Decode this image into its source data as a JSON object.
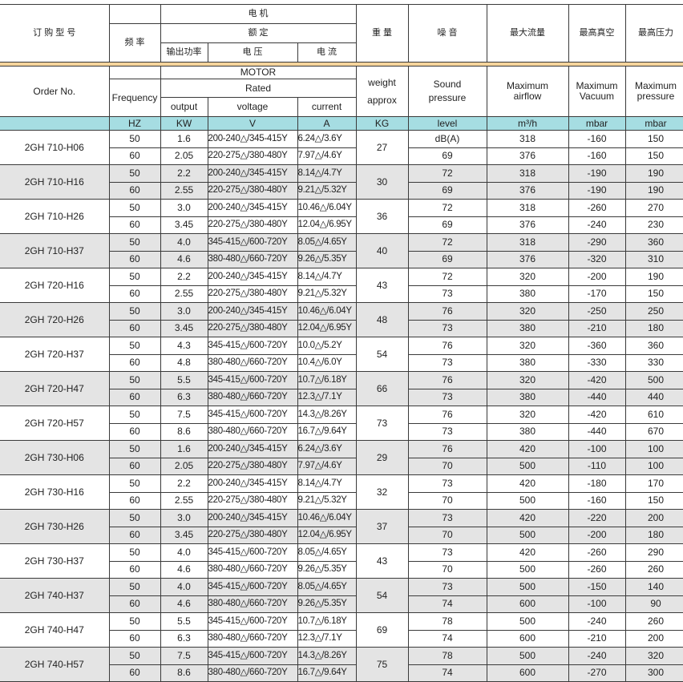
{
  "header": {
    "cn": {
      "order": "订 购 型 号",
      "freq": "频 率",
      "motor": "电 机",
      "rated": "额 定",
      "output": "输出功率",
      "voltage": "电 压",
      "current": "电 流",
      "weight": "重 量",
      "noise": "噪 音",
      "airflow": "最大流量",
      "vacuum": "最高真空",
      "pressure": "最高压力"
    },
    "en": {
      "order": "Order No.",
      "freq": "Frequency",
      "motor": "MOTOR",
      "rated": "Rated",
      "output": "output",
      "voltage": "voltage",
      "current": "current",
      "weight": "weight approx",
      "noise": "Sound pressure",
      "airflow": "Maximum airflow",
      "vacuum": "Maximum Vacuum",
      "pressure": "Maximum pressure"
    },
    "units": [
      "",
      "HZ",
      "KW",
      "V",
      "A",
      "KG",
      "level",
      "m³/h",
      "mbar",
      "mbar"
    ]
  },
  "colors": {
    "header_band": "#f6d49b",
    "units_row": "#a6dde2",
    "alt_row": "#e4e4e4"
  },
  "models": [
    {
      "name": "2GH 710-H06",
      "weight": "27",
      "rows": [
        [
          "50",
          "1.6",
          "200-240△/345-415Y",
          "6.24△/3.6Y",
          "dB(A)",
          "318",
          "-160",
          "150"
        ],
        [
          "60",
          "2.05",
          "220-275△/380-480Y",
          "7.97△/4.6Y",
          "69",
          "376",
          "-160",
          "150"
        ]
      ]
    },
    {
      "name": "2GH 710-H16",
      "weight": "30",
      "rows": [
        [
          "50",
          "2.2",
          "200-240△/345-415Y",
          "8.14△/4.7Y",
          "72",
          "318",
          "-190",
          "190"
        ],
        [
          "60",
          "2.55",
          "220-275△/380-480Y",
          "9.21△/5.32Y",
          "69",
          "376",
          "-190",
          "190"
        ]
      ]
    },
    {
      "name": "2GH 710-H26",
      "weight": "36",
      "rows": [
        [
          "50",
          "3.0",
          "200-240△/345-415Y",
          "10.46△/6.04Y",
          "72",
          "318",
          "-260",
          "270"
        ],
        [
          "60",
          "3.45",
          "220-275△/380-480Y",
          "12.04△/6.95Y",
          "69",
          "376",
          "-240",
          "230"
        ]
      ]
    },
    {
      "name": "2GH 710-H37",
      "weight": "40",
      "rows": [
        [
          "50",
          "4.0",
          "345-415△/600-720Y",
          "8.05△/4.65Y",
          "72",
          "318",
          "-290",
          "360"
        ],
        [
          "60",
          "4.6",
          "380-480△/660-720Y",
          "9.26△/5.35Y",
          "69",
          "376",
          "-320",
          "310"
        ]
      ]
    },
    {
      "name": "2GH 720-H16",
      "weight": "43",
      "rows": [
        [
          "50",
          "2.2",
          "200-240△/345-415Y",
          "8.14△/4.7Y",
          "72",
          "320",
          "-200",
          "190"
        ],
        [
          "60",
          "2.55",
          "220-275△/380-480Y",
          "9.21△/5.32Y",
          "73",
          "380",
          "-170",
          "150"
        ]
      ]
    },
    {
      "name": "2GH 720-H26",
      "weight": "48",
      "rows": [
        [
          "50",
          "3.0",
          "200-240△/345-415Y",
          "10.46△/6.04Y",
          "76",
          "320",
          "-250",
          "250"
        ],
        [
          "60",
          "3.45",
          "220-275△/380-480Y",
          "12.04△/6.95Y",
          "73",
          "380",
          "-210",
          "180"
        ]
      ]
    },
    {
      "name": "2GH 720-H37",
      "weight": "54",
      "rows": [
        [
          "50",
          "4.3",
          "345-415△/600-720Y",
          "10.0△/5.2Y",
          "76",
          "320",
          "-360",
          "360"
        ],
        [
          "60",
          "4.8",
          "380-480△/660-720Y",
          "10.4△/6.0Y",
          "73",
          "380",
          "-330",
          "330"
        ]
      ]
    },
    {
      "name": "2GH 720-H47",
      "weight": "66",
      "rows": [
        [
          "50",
          "5.5",
          "345-415△/600-720Y",
          "10.7△/6.18Y",
          "76",
          "320",
          "-420",
          "500"
        ],
        [
          "60",
          "6.3",
          "380-480△/660-720Y",
          "12.3△/7.1Y",
          "73",
          "380",
          "-440",
          "440"
        ]
      ]
    },
    {
      "name": "2GH 720-H57",
      "weight": "73",
      "rows": [
        [
          "50",
          "7.5",
          "345-415△/600-720Y",
          "14.3△/8.26Y",
          "76",
          "320",
          "-420",
          "610"
        ],
        [
          "60",
          "8.6",
          "380-480△/660-720Y",
          "16.7△/9.64Y",
          "73",
          "380",
          "-440",
          "670"
        ]
      ]
    },
    {
      "name": "2GH 730-H06",
      "weight": "29",
      "rows": [
        [
          "50",
          "1.6",
          "200-240△/345-415Y",
          "6.24△/3.6Y",
          "76",
          "420",
          "-100",
          "100"
        ],
        [
          "60",
          "2.05",
          "220-275△/380-480Y",
          "7.97△/4.6Y",
          "70",
          "500",
          "-110",
          "100"
        ]
      ]
    },
    {
      "name": "2GH 730-H16",
      "weight": "32",
      "rows": [
        [
          "50",
          "2.2",
          "200-240△/345-415Y",
          "8.14△/4.7Y",
          "73",
          "420",
          "-180",
          "170"
        ],
        [
          "60",
          "2.55",
          "220-275△/380-480Y",
          "9.21△/5.32Y",
          "70",
          "500",
          "-160",
          "150"
        ]
      ]
    },
    {
      "name": "2GH 730-H26",
      "weight": "37",
      "rows": [
        [
          "50",
          "3.0",
          "200-240△/345-415Y",
          "10.46△/6.04Y",
          "73",
          "420",
          "-220",
          "200"
        ],
        [
          "60",
          "3.45",
          "220-275△/380-480Y",
          "12.04△/6.95Y",
          "70",
          "500",
          "-200",
          "180"
        ]
      ]
    },
    {
      "name": "2GH 730-H37",
      "weight": "43",
      "rows": [
        [
          "50",
          "4.0",
          "345-415△/600-720Y",
          "8.05△/4.65Y",
          "73",
          "420",
          "-260",
          "290"
        ],
        [
          "60",
          "4.6",
          "380-480△/660-720Y",
          "9.26△/5.35Y",
          "70",
          "500",
          "-260",
          "260"
        ]
      ]
    },
    {
      "name": "2GH 740-H37",
      "weight": "54",
      "rows": [
        [
          "50",
          "4.0",
          "345-415△/600-720Y",
          "8.05△/4.65Y",
          "73",
          "500",
          "-150",
          "140"
        ],
        [
          "60",
          "4.6",
          "380-480△/660-720Y",
          "9.26△/5.35Y",
          "74",
          "600",
          "-100",
          "90"
        ]
      ]
    },
    {
      "name": "2GH 740-H47",
      "weight": "69",
      "rows": [
        [
          "50",
          "5.5",
          "345-415△/600-720Y",
          "10.7△/6.18Y",
          "78",
          "500",
          "-240",
          "260"
        ],
        [
          "60",
          "6.3",
          "380-480△/660-720Y",
          "12.3△/7.1Y",
          "74",
          "600",
          "-210",
          "200"
        ]
      ]
    },
    {
      "name": "2GH 740-H57",
      "weight": "75",
      "rows": [
        [
          "50",
          "7.5",
          "345-415△/600-720Y",
          "14.3△/8.26Y",
          "78",
          "500",
          "-240",
          "320"
        ],
        [
          "60",
          "8.6",
          "380-480△/660-720Y",
          "16.7△/9.64Y",
          "74",
          "600",
          "-270",
          "300"
        ]
      ]
    }
  ]
}
